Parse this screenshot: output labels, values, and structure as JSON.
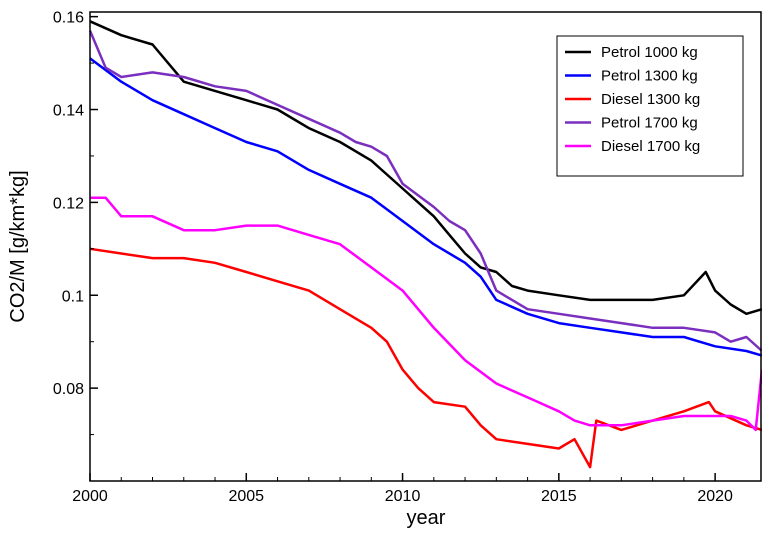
{
  "chart_data": {
    "type": "line",
    "title": "",
    "xlabel": "year",
    "ylabel": "CO2/M [g/km*kg]",
    "xlim": [
      2000,
      2021.5
    ],
    "ylim": [
      0.06,
      0.161
    ],
    "x_ticks": [
      2000,
      2005,
      2010,
      2015,
      2020
    ],
    "x_tick_labels": [
      "2000",
      "2005",
      "2010",
      "2015",
      "2020"
    ],
    "y_ticks": [
      0.08,
      0.1,
      0.12,
      0.14,
      0.16
    ],
    "y_tick_labels": [
      "0.08",
      "0.1",
      "0.12",
      "0.14",
      "0.16"
    ],
    "grid": false,
    "legend_position": "top-right",
    "series": [
      {
        "name": "Petrol 1000 kg",
        "color": "#000000",
        "x": [
          2000,
          2001,
          2002,
          2003,
          2004,
          2005,
          2006,
          2007,
          2008,
          2009,
          2010,
          2010.5,
          2011,
          2011.5,
          2012,
          2012.5,
          2013,
          2013.5,
          2014,
          2015,
          2016,
          2017,
          2018,
          2019,
          2019.7,
          2020,
          2020.5,
          2021,
          2021.5
        ],
        "y": [
          0.159,
          0.156,
          0.154,
          0.146,
          0.144,
          0.142,
          0.14,
          0.136,
          0.133,
          0.129,
          0.123,
          0.12,
          0.117,
          0.113,
          0.109,
          0.106,
          0.105,
          0.102,
          0.101,
          0.1,
          0.099,
          0.099,
          0.099,
          0.1,
          0.105,
          0.101,
          0.098,
          0.096,
          0.097
        ]
      },
      {
        "name": "Petrol 1300 kg",
        "color": "#0000ff",
        "x": [
          2000,
          2001,
          2002,
          2003,
          2004,
          2005,
          2006,
          2007,
          2008,
          2009,
          2010,
          2011,
          2012,
          2012.5,
          2013,
          2014,
          2015,
          2016,
          2017,
          2018,
          2019,
          2020,
          2021,
          2021.5
        ],
        "y": [
          0.151,
          0.146,
          0.142,
          0.139,
          0.136,
          0.133,
          0.131,
          0.127,
          0.124,
          0.121,
          0.116,
          0.111,
          0.107,
          0.104,
          0.099,
          0.096,
          0.094,
          0.093,
          0.092,
          0.091,
          0.091,
          0.089,
          0.088,
          0.087
        ]
      },
      {
        "name": "Diesel 1300 kg",
        "color": "#ff0000",
        "x": [
          2000,
          2001,
          2002,
          2003,
          2004,
          2005,
          2006,
          2007,
          2008,
          2009,
          2009.5,
          2010,
          2010.5,
          2011,
          2012,
          2012.5,
          2013,
          2014,
          2015,
          2015.5,
          2016,
          2016.2,
          2017,
          2018,
          2019,
          2019.8,
          2020,
          2021,
          2021.5
        ],
        "y": [
          0.11,
          0.109,
          0.108,
          0.108,
          0.107,
          0.105,
          0.103,
          0.101,
          0.097,
          0.093,
          0.09,
          0.084,
          0.08,
          0.077,
          0.076,
          0.072,
          0.069,
          0.068,
          0.067,
          0.069,
          0.063,
          0.073,
          0.071,
          0.073,
          0.075,
          0.077,
          0.075,
          0.072,
          0.071
        ]
      },
      {
        "name": "Petrol 1700 kg",
        "color": "#7b2fbe",
        "x": [
          2000,
          2000.5,
          2001,
          2002,
          2003,
          2004,
          2005,
          2006,
          2007,
          2008,
          2008.5,
          2009,
          2009.5,
          2010,
          2011,
          2011.5,
          2012,
          2012.5,
          2013,
          2014,
          2015,
          2016,
          2017,
          2018,
          2019,
          2020,
          2020.5,
          2021,
          2021.5
        ],
        "y": [
          0.157,
          0.149,
          0.147,
          0.148,
          0.147,
          0.145,
          0.144,
          0.141,
          0.138,
          0.135,
          0.133,
          0.132,
          0.13,
          0.124,
          0.119,
          0.116,
          0.114,
          0.109,
          0.101,
          0.097,
          0.096,
          0.095,
          0.094,
          0.093,
          0.093,
          0.092,
          0.09,
          0.091,
          0.088
        ]
      },
      {
        "name": "Diesel 1700 kg",
        "color": "#ff00ff",
        "x": [
          2000,
          2000.5,
          2001,
          2002,
          2003,
          2004,
          2005,
          2006,
          2007,
          2008,
          2009,
          2010,
          2011,
          2012,
          2013,
          2014,
          2015,
          2015.5,
          2016,
          2017,
          2018,
          2019,
          2020,
          2020.5,
          2021,
          2021.3,
          2021.5
        ],
        "y": [
          0.121,
          0.121,
          0.117,
          0.117,
          0.114,
          0.114,
          0.115,
          0.115,
          0.113,
          0.111,
          0.106,
          0.101,
          0.093,
          0.086,
          0.081,
          0.078,
          0.075,
          0.073,
          0.072,
          0.072,
          0.073,
          0.074,
          0.074,
          0.074,
          0.073,
          0.071,
          0.084
        ]
      }
    ]
  }
}
